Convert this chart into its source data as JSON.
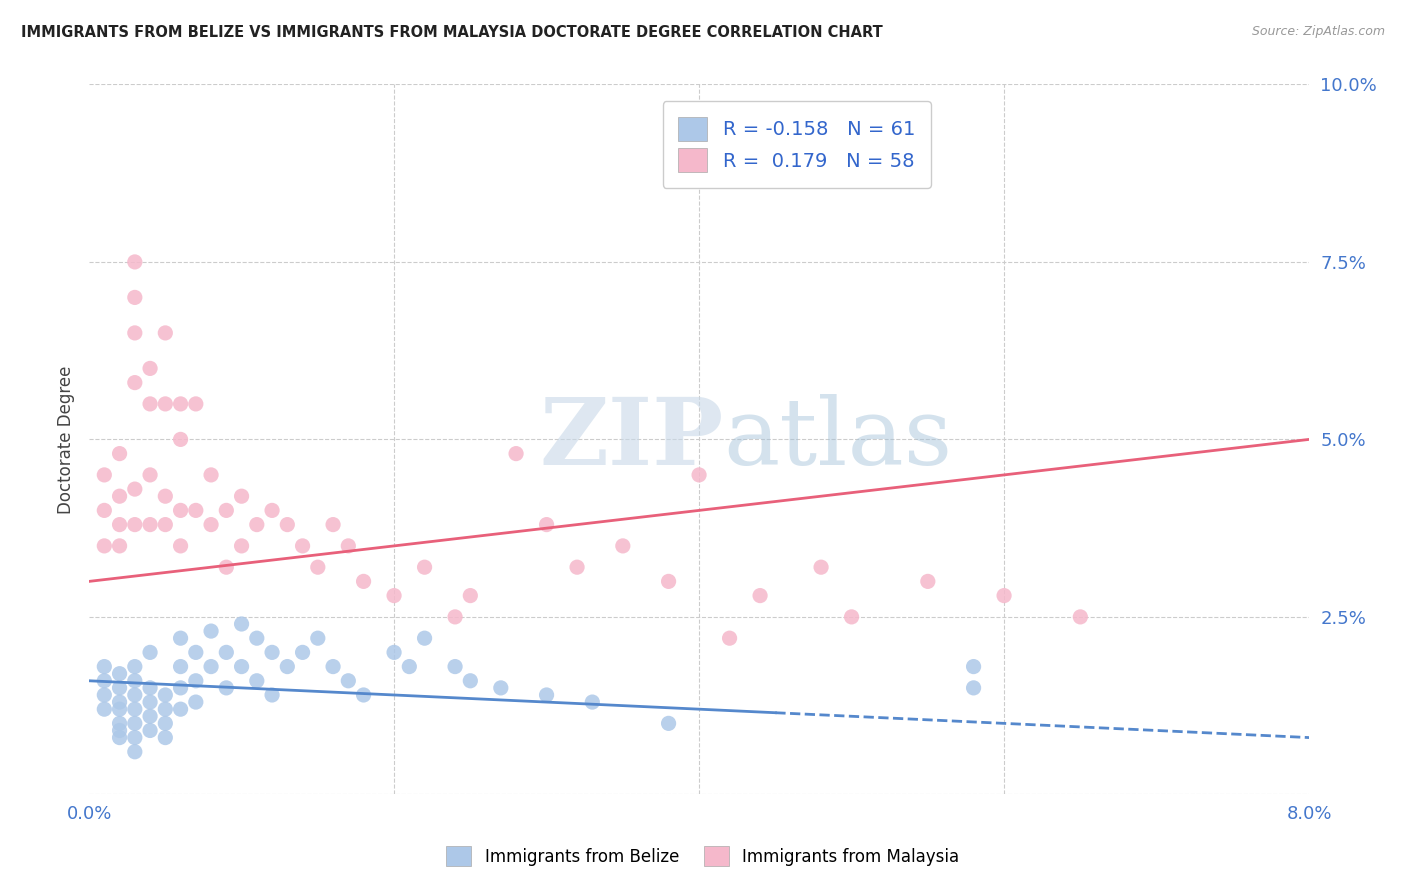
{
  "title": "IMMIGRANTS FROM BELIZE VS IMMIGRANTS FROM MALAYSIA DOCTORATE DEGREE CORRELATION CHART",
  "source": "Source: ZipAtlas.com",
  "ylabel": "Doctorate Degree",
  "xlim": [
    0.0,
    0.08
  ],
  "ylim": [
    0.0,
    0.1
  ],
  "belize_R": -0.158,
  "belize_N": 61,
  "malaysia_R": 0.179,
  "malaysia_N": 58,
  "belize_color": "#adc8e8",
  "malaysia_color": "#f5b8cb",
  "belize_line_color": "#5588cc",
  "malaysia_line_color": "#e8607a",
  "background_color": "#ffffff",
  "grid_color": "#cccccc",
  "watermark_zip": "ZIP",
  "watermark_atlas": "atlas",
  "belize_x": [
    0.001,
    0.001,
    0.001,
    0.001,
    0.002,
    0.002,
    0.002,
    0.002,
    0.002,
    0.002,
    0.002,
    0.003,
    0.003,
    0.003,
    0.003,
    0.003,
    0.003,
    0.003,
    0.004,
    0.004,
    0.004,
    0.004,
    0.004,
    0.005,
    0.005,
    0.005,
    0.005,
    0.006,
    0.006,
    0.006,
    0.006,
    0.007,
    0.007,
    0.007,
    0.008,
    0.008,
    0.009,
    0.009,
    0.01,
    0.01,
    0.011,
    0.011,
    0.012,
    0.012,
    0.013,
    0.014,
    0.015,
    0.016,
    0.017,
    0.018,
    0.02,
    0.021,
    0.022,
    0.024,
    0.025,
    0.027,
    0.03,
    0.033,
    0.038,
    0.058,
    0.058
  ],
  "belize_y": [
    0.014,
    0.016,
    0.018,
    0.012,
    0.013,
    0.015,
    0.017,
    0.01,
    0.012,
    0.008,
    0.009,
    0.016,
    0.014,
    0.012,
    0.01,
    0.008,
    0.006,
    0.018,
    0.015,
    0.013,
    0.011,
    0.009,
    0.02,
    0.014,
    0.012,
    0.01,
    0.008,
    0.022,
    0.018,
    0.015,
    0.012,
    0.02,
    0.016,
    0.013,
    0.023,
    0.018,
    0.02,
    0.015,
    0.024,
    0.018,
    0.022,
    0.016,
    0.02,
    0.014,
    0.018,
    0.02,
    0.022,
    0.018,
    0.016,
    0.014,
    0.02,
    0.018,
    0.022,
    0.018,
    0.016,
    0.015,
    0.014,
    0.013,
    0.01,
    0.018,
    0.015
  ],
  "malaysia_x": [
    0.001,
    0.001,
    0.001,
    0.002,
    0.002,
    0.002,
    0.002,
    0.003,
    0.003,
    0.003,
    0.003,
    0.003,
    0.003,
    0.004,
    0.004,
    0.004,
    0.004,
    0.005,
    0.005,
    0.005,
    0.005,
    0.006,
    0.006,
    0.006,
    0.006,
    0.007,
    0.007,
    0.008,
    0.008,
    0.009,
    0.009,
    0.01,
    0.01,
    0.011,
    0.012,
    0.013,
    0.014,
    0.015,
    0.016,
    0.017,
    0.018,
    0.02,
    0.022,
    0.024,
    0.025,
    0.028,
    0.03,
    0.032,
    0.035,
    0.038,
    0.04,
    0.042,
    0.044,
    0.048,
    0.05,
    0.055,
    0.06,
    0.065
  ],
  "malaysia_y": [
    0.035,
    0.04,
    0.045,
    0.038,
    0.042,
    0.048,
    0.035,
    0.058,
    0.065,
    0.07,
    0.075,
    0.038,
    0.043,
    0.055,
    0.06,
    0.038,
    0.045,
    0.065,
    0.055,
    0.042,
    0.038,
    0.055,
    0.05,
    0.04,
    0.035,
    0.055,
    0.04,
    0.038,
    0.045,
    0.04,
    0.032,
    0.042,
    0.035,
    0.038,
    0.04,
    0.038,
    0.035,
    0.032,
    0.038,
    0.035,
    0.03,
    0.028,
    0.032,
    0.025,
    0.028,
    0.048,
    0.038,
    0.032,
    0.035,
    0.03,
    0.045,
    0.022,
    0.028,
    0.032,
    0.025,
    0.03,
    0.028,
    0.025
  ],
  "belize_line_x0": 0.0,
  "belize_line_y0": 0.016,
  "belize_line_x1": 0.08,
  "belize_line_y1": 0.008,
  "malaysia_line_x0": 0.0,
  "malaysia_line_y0": 0.03,
  "malaysia_line_x1": 0.08,
  "malaysia_line_y1": 0.05
}
